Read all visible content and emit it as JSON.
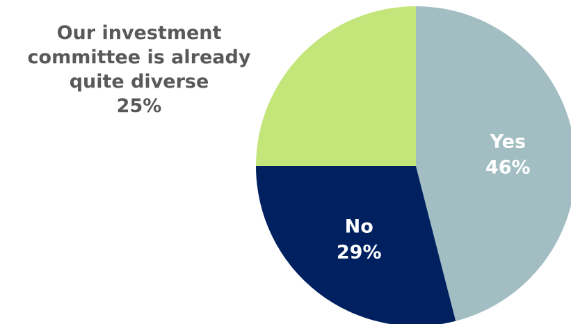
{
  "chart_data": {
    "type": "pie",
    "title": "",
    "start": "12 o'clock, clockwise",
    "slices": [
      {
        "label": "Yes",
        "value": 46,
        "value_text": "46%",
        "color": "#a2bec2",
        "text_color": "#ffffff"
      },
      {
        "label": "No",
        "value": 29,
        "value_text": "29%",
        "color": "#002060",
        "text_color": "#ffffff"
      },
      {
        "label": "Our investment committee is already quite diverse",
        "value": 25,
        "value_text": "25%",
        "color": "#c3e57a",
        "text_color": "#595959"
      }
    ]
  },
  "outside_label": {
    "lines": [
      "Our investment",
      "committee is already",
      "quite diverse"
    ],
    "value_text": "25%"
  }
}
